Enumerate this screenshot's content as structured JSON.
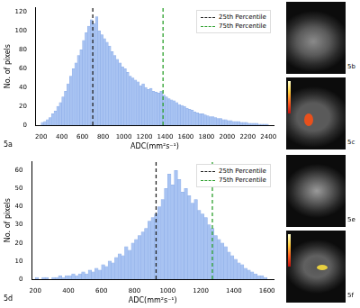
{
  "chart_data": [
    {
      "type": "histogram",
      "panel": "5a",
      "xlabel": "ADC(mm²s⁻¹)",
      "ylabel": "No. of pixels",
      "bins": [
        200,
        225,
        250,
        275,
        300,
        325,
        350,
        375,
        400,
        425,
        450,
        475,
        500,
        525,
        550,
        575,
        600,
        625,
        650,
        675,
        700,
        725,
        750,
        775,
        800,
        825,
        850,
        875,
        900,
        925,
        950,
        975,
        1000,
        1025,
        1050,
        1075,
        1100,
        1125,
        1150,
        1175,
        1200,
        1225,
        1250,
        1275,
        1300,
        1325,
        1350,
        1375,
        1400,
        1425,
        1450,
        1475,
        1500,
        1525,
        1550,
        1575,
        1600,
        1625,
        1650,
        1675,
        1700,
        1725,
        1750,
        1775,
        1800,
        1825,
        1850,
        1875,
        1900,
        1925,
        1950,
        1975,
        2000,
        2025,
        2050,
        2075,
        2100,
        2125,
        2150,
        2175,
        2200,
        2225,
        2250,
        2275,
        2300,
        2325,
        2350,
        2375,
        2400
      ],
      "counts": [
        3,
        4,
        6,
        8,
        12,
        15,
        20,
        24,
        30,
        36,
        44,
        52,
        60,
        66,
        74,
        80,
        90,
        98,
        105,
        112,
        108,
        115,
        100,
        96,
        92,
        88,
        84,
        78,
        74,
        70,
        66,
        62,
        60,
        56,
        52,
        50,
        48,
        46,
        42,
        44,
        40,
        38,
        39,
        36,
        35,
        34,
        36,
        32,
        30,
        28,
        27,
        26,
        24,
        22,
        21,
        20,
        18,
        17,
        16,
        14,
        13,
        12,
        12,
        11,
        10,
        9,
        9,
        8,
        7,
        7,
        6,
        6,
        5,
        5,
        4,
        4,
        4,
        3,
        3,
        3,
        2,
        2,
        2,
        2,
        1,
        1,
        1,
        1
      ],
      "color": "#a8c3f2",
      "xlim": [
        150,
        2450
      ],
      "xticks": [
        200,
        400,
        600,
        800,
        1000,
        1200,
        1400,
        1600,
        1800,
        2000,
        2200,
        2400
      ],
      "ylim": [
        0,
        125
      ],
      "yticks": [
        0,
        20,
        40,
        60,
        80,
        100,
        120
      ],
      "grid": false,
      "legend": "upper right",
      "vlines": [
        {
          "name": "25th Percentile",
          "x": 700,
          "color": "#222222",
          "line_style": "dashed"
        },
        {
          "name": "75th Percentile",
          "x": 1380,
          "color": "#2ca02c",
          "line_style": "dashed"
        }
      ]
    },
    {
      "type": "histogram",
      "panel": "5d",
      "xlabel": "ADC(mm²s⁻¹)",
      "ylabel": "No. of pixels",
      "bins": [
        200,
        220,
        240,
        260,
        280,
        300,
        320,
        340,
        360,
        380,
        400,
        420,
        440,
        460,
        480,
        500,
        520,
        540,
        560,
        580,
        600,
        620,
        640,
        660,
        680,
        700,
        720,
        740,
        760,
        780,
        800,
        820,
        840,
        860,
        880,
        900,
        920,
        940,
        960,
        980,
        1000,
        1020,
        1040,
        1060,
        1080,
        1100,
        1120,
        1140,
        1160,
        1180,
        1200,
        1220,
        1240,
        1260,
        1280,
        1300,
        1320,
        1340,
        1360,
        1380,
        1400,
        1420,
        1440,
        1460,
        1480,
        1500,
        1520,
        1540,
        1560,
        1580,
        1600
      ],
      "counts": [
        1,
        0,
        1,
        1,
        0,
        1,
        1,
        2,
        1,
        2,
        2,
        3,
        2,
        3,
        4,
        3,
        5,
        4,
        6,
        5,
        8,
        7,
        10,
        9,
        12,
        14,
        13,
        18,
        16,
        20,
        22,
        24,
        26,
        28,
        32,
        34,
        36,
        40,
        44,
        50,
        58,
        52,
        60,
        55,
        48,
        50,
        46,
        42,
        44,
        38,
        36,
        34,
        30,
        28,
        24,
        22,
        20,
        18,
        15,
        13,
        11,
        9,
        8,
        6,
        5,
        4,
        3,
        2,
        2,
        1
      ],
      "color": "#a8c3f2",
      "xlim": [
        180,
        1640
      ],
      "xticks": [
        200,
        400,
        600,
        800,
        1000,
        1200,
        1400,
        1600
      ],
      "ylim": [
        0,
        65
      ],
      "yticks": [
        0,
        10,
        20,
        30,
        40,
        50,
        60
      ],
      "grid": false,
      "legend": "upper right",
      "vlines": [
        {
          "name": "25th Percentile",
          "x": 930,
          "color": "#222222",
          "line_style": "dashed"
        },
        {
          "name": "75th Percentile",
          "x": 1270,
          "color": "#2ca02c",
          "line_style": "dashed"
        }
      ]
    }
  ],
  "images": [
    {
      "label": "5b"
    },
    {
      "label": "5c"
    },
    {
      "label": "5e"
    },
    {
      "label": "5f"
    }
  ]
}
